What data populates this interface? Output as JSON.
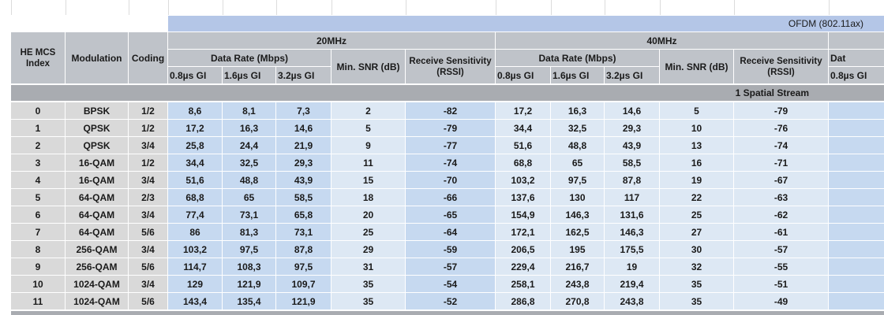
{
  "header": {
    "group": "OFDM (802.11ax)",
    "col_index": "HE MCS Index",
    "col_modulation": "Modulation",
    "col_coding": "Coding",
    "bands": [
      {
        "name": "20MHz",
        "data_rate": "Data Rate (Mbps)",
        "gi": [
          "0.8µs GI",
          "1.6µs GI",
          "3.2µs GI"
        ],
        "snr": "Min. SNR (dB)",
        "sensitivity": "Receive Sensitivity (RSSI)"
      },
      {
        "name": "40MHz",
        "data_rate": "Data Rate (Mbps)",
        "gi": [
          "0.8µs GI",
          "1.6µs GI",
          "3.2µs GI"
        ],
        "snr": "Min. SNR (dB)",
        "sensitivity": "Receive Sensitivity (RSSI)"
      },
      {
        "data_rate": "Dat",
        "gi": [
          "0.8µs GI"
        ]
      }
    ]
  },
  "section": "1 Spatial Stream",
  "rows": [
    [
      "0",
      "BPSK",
      "1/2",
      "8,6",
      "8,1",
      "7,3",
      "2",
      "-82",
      "17,2",
      "16,3",
      "14,6",
      "5",
      "-79"
    ],
    [
      "1",
      "QPSK",
      "1/2",
      "17,2",
      "16,3",
      "14,6",
      "5",
      "-79",
      "34,4",
      "32,5",
      "29,3",
      "10",
      "-76"
    ],
    [
      "2",
      "QPSK",
      "3/4",
      "25,8",
      "24,4",
      "21,9",
      "9",
      "-77",
      "51,6",
      "48,8",
      "43,9",
      "13",
      "-74"
    ],
    [
      "3",
      "16-QAM",
      "1/2",
      "34,4",
      "32,5",
      "29,3",
      "11",
      "-74",
      "68,8",
      "65",
      "58,5",
      "16",
      "-71"
    ],
    [
      "4",
      "16-QAM",
      "3/4",
      "51,6",
      "48,8",
      "43,9",
      "15",
      "-70",
      "103,2",
      "97,5",
      "87,8",
      "19",
      "-67"
    ],
    [
      "5",
      "64-QAM",
      "2/3",
      "68,8",
      "65",
      "58,5",
      "18",
      "-66",
      "137,6",
      "130",
      "117",
      "22",
      "-63"
    ],
    [
      "6",
      "64-QAM",
      "3/4",
      "77,4",
      "73,1",
      "65,8",
      "20",
      "-65",
      "154,9",
      "146,3",
      "131,6",
      "25",
      "-62"
    ],
    [
      "7",
      "64-QAM",
      "5/6",
      "86",
      "81,3",
      "73,1",
      "25",
      "-64",
      "172,1",
      "162,5",
      "146,3",
      "27",
      "-61"
    ],
    [
      "8",
      "256-QAM",
      "3/4",
      "103,2",
      "97,5",
      "87,8",
      "29",
      "-59",
      "206,5",
      "195",
      "175,5",
      "30",
      "-57"
    ],
    [
      "9",
      "256-QAM",
      "5/6",
      "114,7",
      "108,3",
      "97,5",
      "31",
      "-57",
      "229,4",
      "216,7",
      "19",
      "32",
      "-55"
    ],
    [
      "10",
      "1024-QAM",
      "3/4",
      "129",
      "121,9",
      "109,7",
      "35",
      "-54",
      "258,1",
      "243,8",
      "219,4",
      "35",
      "-51"
    ],
    [
      "11",
      "1024-QAM",
      "5/6",
      "143,4",
      "135,4",
      "121,9",
      "35",
      "-52",
      "286,8",
      "270,8",
      "243,8",
      "35",
      "-49"
    ]
  ]
}
